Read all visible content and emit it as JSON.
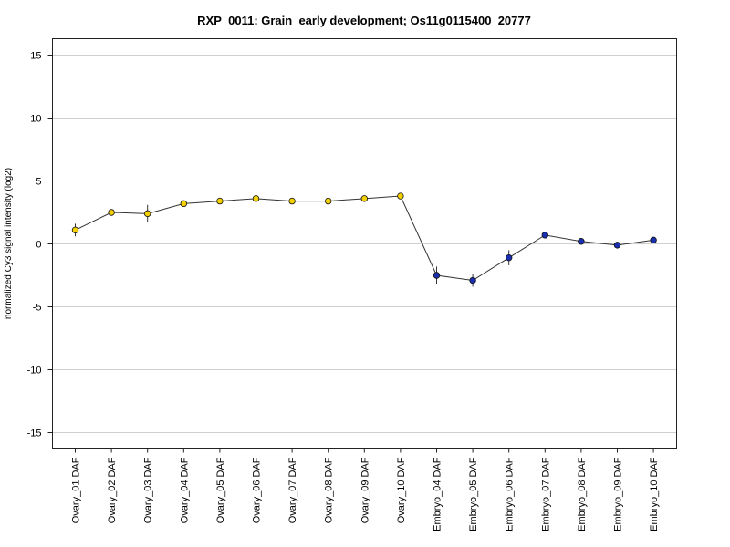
{
  "chart_data": {
    "type": "line",
    "title": "RXP_0011: Grain_early development; Os11g0115400_20777",
    "xlabel": "",
    "ylabel": "normalized Cy3 signal intensity (log2)",
    "ylim": [
      -16.2,
      16.2
    ],
    "yticks": [
      "15",
      "10",
      "5",
      "0",
      "-5",
      "-10",
      "-15"
    ],
    "grid": true,
    "categories": [
      "Ovary_01 DAF",
      "Ovary_02 DAF",
      "Ovary_03 DAF",
      "Ovary_04 DAF",
      "Ovary_05 DAF",
      "Ovary_06 DAF",
      "Ovary_07 DAF",
      "Ovary_08 DAF",
      "Ovary_09 DAF",
      "Ovary_10 DAF",
      "Embryo_04 DAF",
      "Embryo_05 DAF",
      "Embryo_06 DAF",
      "Embryo_07 DAF",
      "Embryo_08 DAF",
      "Embryo_09 DAF",
      "Embryo_10 DAF"
    ],
    "values": [
      1.1,
      2.5,
      2.4,
      3.2,
      3.4,
      3.6,
      3.4,
      3.4,
      3.6,
      3.8,
      -2.5,
      -2.9,
      -1.1,
      0.7,
      0.2,
      -0.1,
      0.3
    ],
    "error": [
      0.5,
      0.1,
      0.7,
      0.15,
      0.1,
      0.1,
      0.1,
      0.1,
      0.1,
      0.15,
      0.7,
      0.5,
      0.6,
      0.1,
      0.1,
      0.05,
      0.1
    ],
    "point_colors": [
      "#f5d000",
      "#f5d000",
      "#f5d000",
      "#f5d000",
      "#f5d000",
      "#f5d000",
      "#f5d000",
      "#f5d000",
      "#f5d000",
      "#f5d000",
      "#1a2fb0",
      "#1a2fb0",
      "#1a2fb0",
      "#1a2fb0",
      "#1a2fb0",
      "#1a2fb0",
      "#1a2fb0"
    ]
  }
}
